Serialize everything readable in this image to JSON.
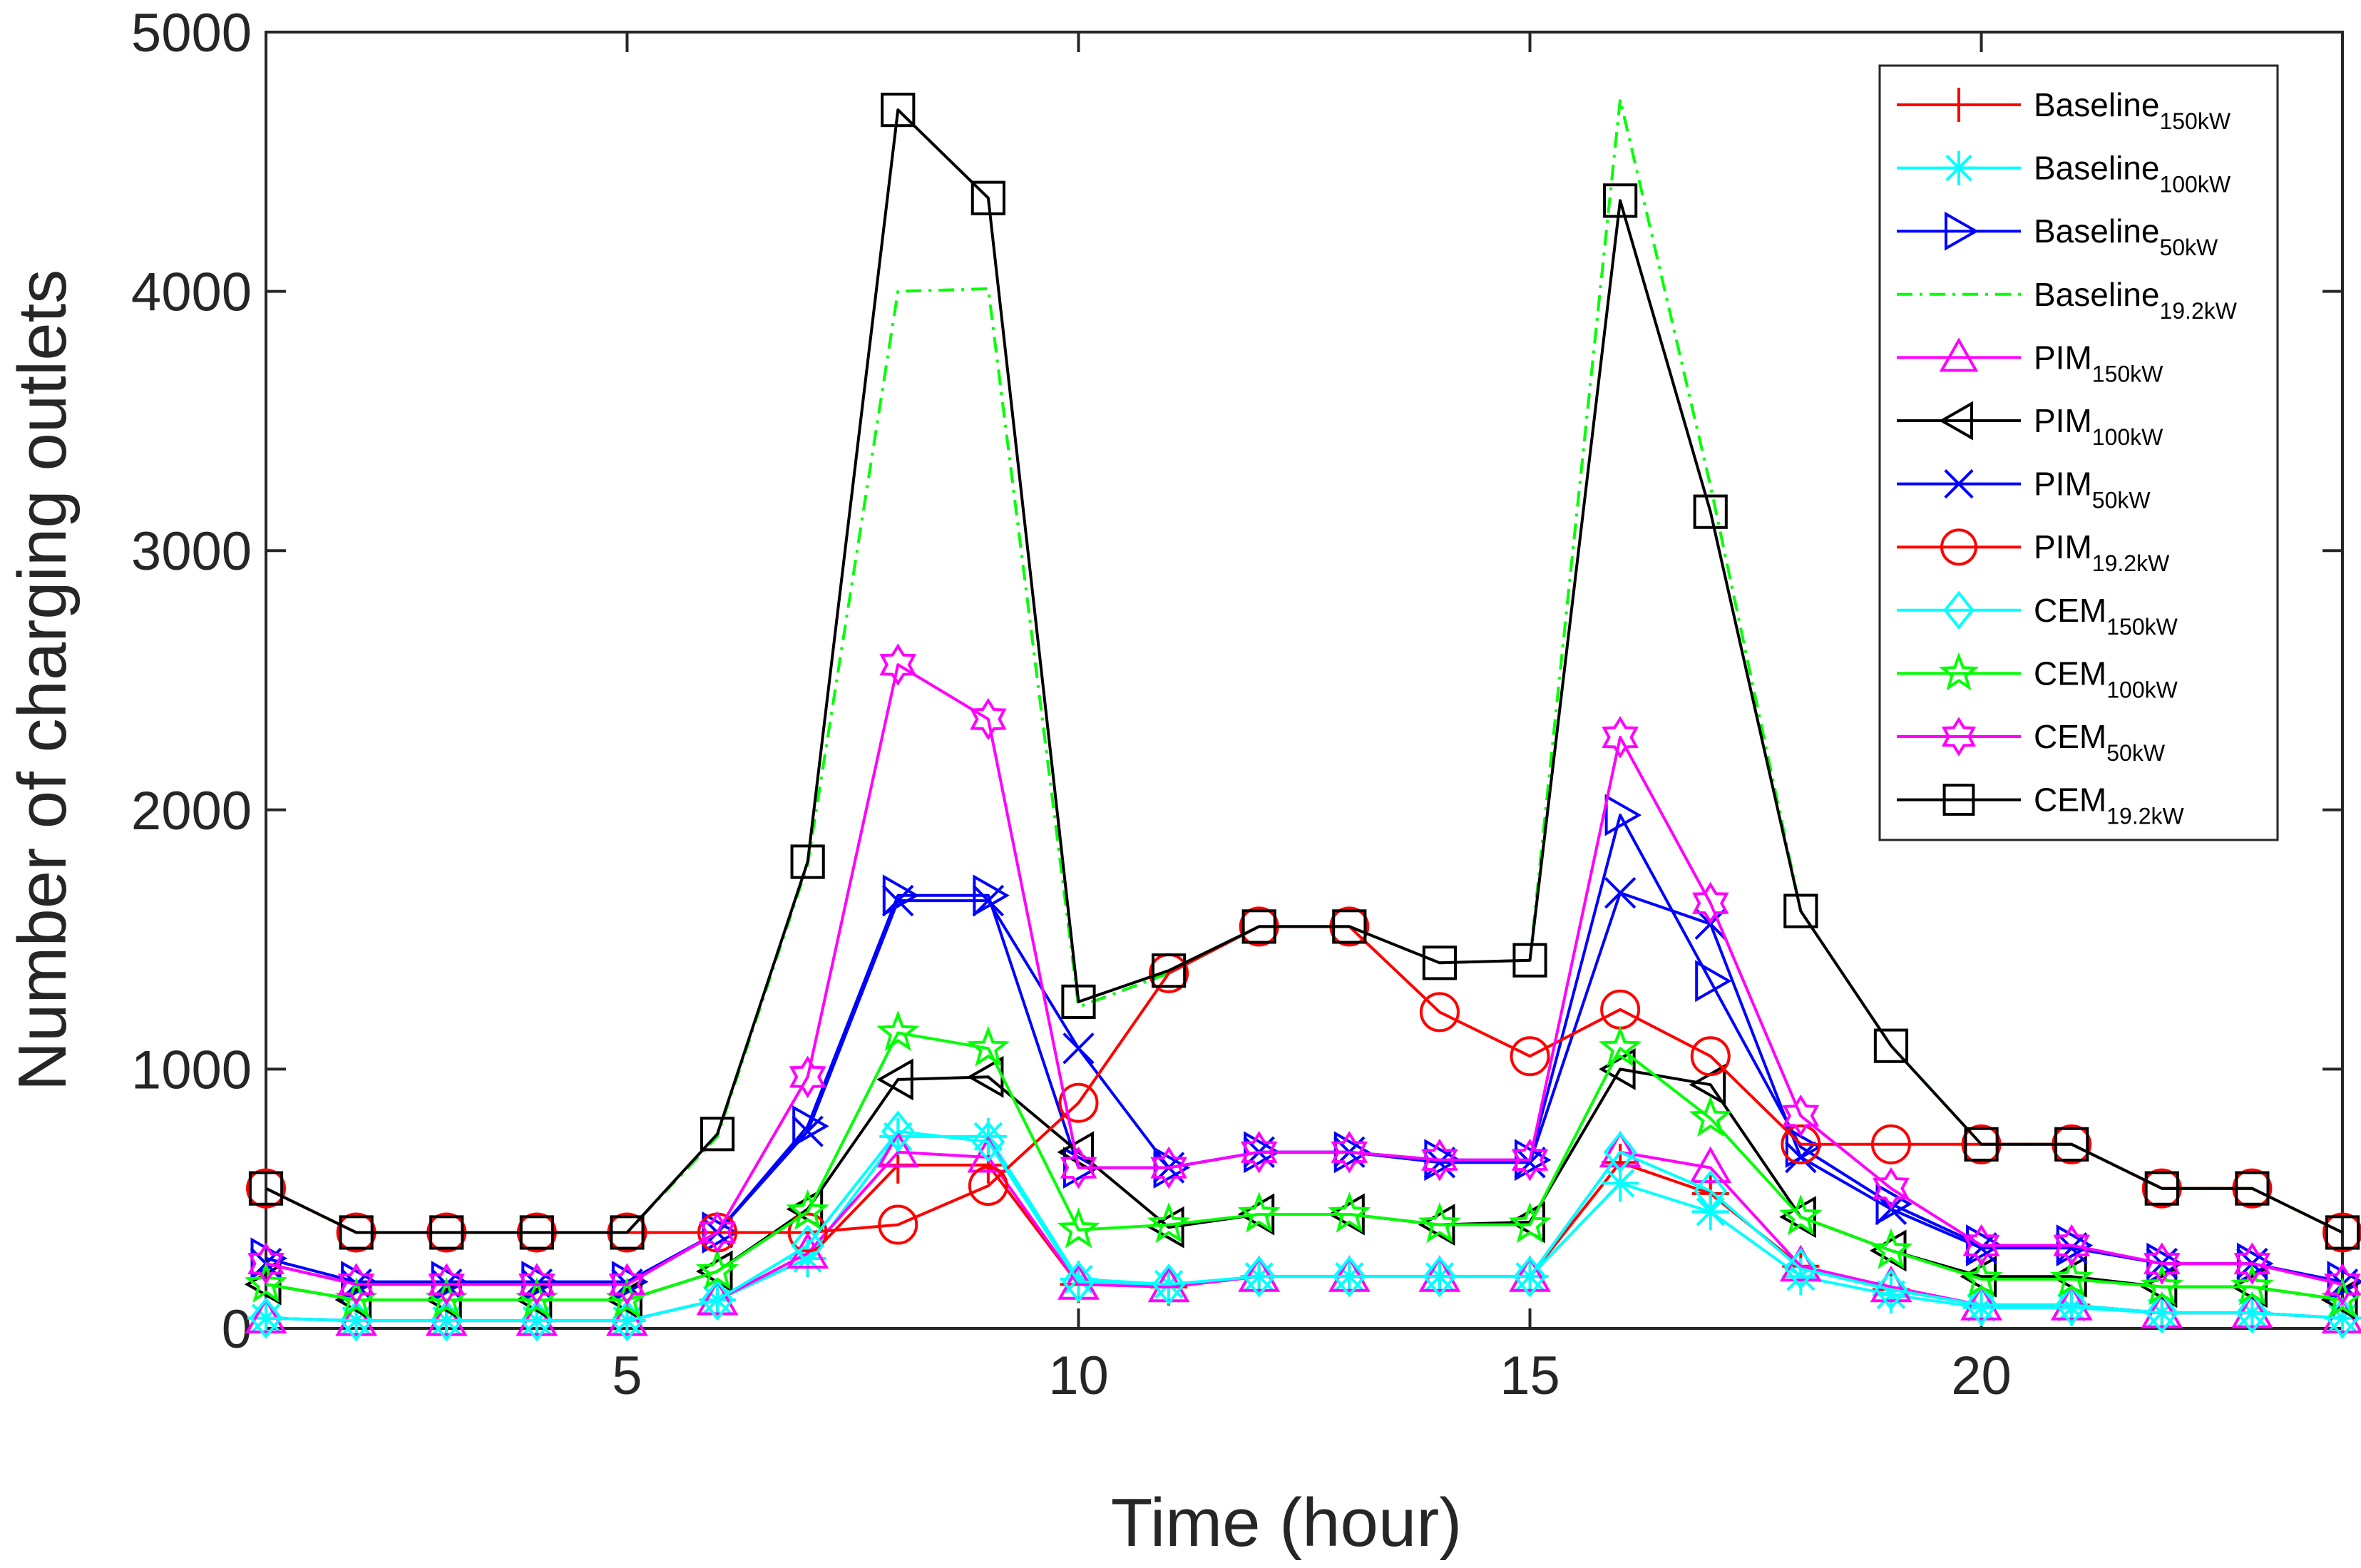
{
  "chart_data": {
    "type": "line",
    "title": "",
    "xlabel": "Time (hour)",
    "ylabel": "Number of charging outlets",
    "xlim": [
      1,
      24
    ],
    "ylim": [
      0,
      5000
    ],
    "xticks": [
      5,
      10,
      15,
      20
    ],
    "yticks": [
      0,
      1000,
      2000,
      3000,
      4000,
      5000
    ],
    "legend_position": "top-right",
    "x": [
      1,
      2,
      3,
      4,
      5,
      6,
      7,
      8,
      9,
      10,
      11,
      12,
      13,
      14,
      15,
      16,
      17,
      18,
      19,
      20,
      21,
      22,
      23,
      24
    ],
    "series": [
      {
        "name": "Baseline",
        "subscript": "150kW",
        "color": "#ff0000",
        "marker": "plus",
        "dash": "solid",
        "values": [
          40,
          30,
          30,
          30,
          30,
          110,
          270,
          630,
          630,
          170,
          160,
          200,
          200,
          200,
          200,
          640,
          520,
          240,
          150,
          90,
          90,
          60,
          60,
          40
        ]
      },
      {
        "name": "Baseline",
        "subscript": "100kW",
        "color": "#00ffff",
        "marker": "asterisk",
        "dash": "solid",
        "values": [
          40,
          30,
          30,
          30,
          30,
          110,
          270,
          740,
          740,
          190,
          170,
          200,
          200,
          200,
          200,
          560,
          450,
          200,
          130,
          80,
          80,
          60,
          60,
          40
        ]
      },
      {
        "name": "Baseline",
        "subscript": "50kW",
        "color": "#0000ff",
        "marker": "triangle-right",
        "dash": "solid",
        "values": [
          270,
          180,
          180,
          180,
          180,
          370,
          780,
          1670,
          1670,
          620,
          620,
          680,
          680,
          650,
          650,
          1980,
          1340,
          700,
          480,
          320,
          320,
          250,
          250,
          180
        ]
      },
      {
        "name": "Baseline",
        "subscript": "19.2kW",
        "color": "#00ff00",
        "marker": "none",
        "dash": "dashdot",
        "values": [
          540,
          370,
          370,
          370,
          370,
          740,
          1790,
          4000,
          4010,
          1240,
          1370,
          1550,
          1550,
          1410,
          1420,
          4740,
          3250,
          1610,
          1090,
          710,
          710,
          540,
          540,
          370
        ]
      },
      {
        "name": "PIM",
        "subscript": "150kW",
        "color": "#ff00ff",
        "marker": "triangle-up",
        "dash": "solid",
        "values": [
          40,
          30,
          30,
          30,
          30,
          110,
          290,
          680,
          660,
          170,
          160,
          200,
          200,
          200,
          200,
          680,
          620,
          240,
          160,
          90,
          90,
          60,
          60,
          40
        ]
      },
      {
        "name": "PIM",
        "subscript": "100kW",
        "color": "#000000",
        "marker": "triangle-left",
        "dash": "solid",
        "values": [
          170,
          110,
          110,
          110,
          110,
          220,
          460,
          960,
          970,
          680,
          390,
          440,
          440,
          400,
          410,
          1000,
          940,
          430,
          300,
          200,
          200,
          160,
          160,
          110
        ]
      },
      {
        "name": "PIM",
        "subscript": "50kW",
        "color": "#0000ff",
        "marker": "cross",
        "dash": "solid",
        "values": [
          250,
          170,
          170,
          170,
          170,
          370,
          760,
          1650,
          1650,
          1080,
          620,
          680,
          680,
          640,
          640,
          1680,
          1560,
          660,
          460,
          310,
          310,
          250,
          250,
          170
        ]
      },
      {
        "name": "PIM",
        "subscript": "19.2kW",
        "color": "#ff0000",
        "marker": "circle",
        "dash": "solid",
        "values": [
          540,
          370,
          370,
          370,
          370,
          370,
          370,
          400,
          550,
          870,
          1370,
          1550,
          1550,
          1220,
          1050,
          1230,
          1050,
          710,
          710,
          710,
          710,
          540,
          540,
          370
        ]
      },
      {
        "name": "CEM",
        "subscript": "150kW",
        "color": "#00ffff",
        "marker": "diamond",
        "dash": "solid",
        "values": [
          40,
          30,
          30,
          30,
          30,
          110,
          320,
          760,
          720,
          180,
          170,
          200,
          200,
          200,
          200,
          680,
          530,
          230,
          150,
          90,
          90,
          60,
          60,
          40
        ]
      },
      {
        "name": "CEM",
        "subscript": "100kW",
        "color": "#00ff00",
        "marker": "star5",
        "dash": "solid",
        "values": [
          170,
          110,
          110,
          110,
          110,
          220,
          450,
          1140,
          1080,
          380,
          400,
          440,
          440,
          400,
          400,
          1080,
          810,
          430,
          300,
          190,
          190,
          160,
          160,
          110
        ]
      },
      {
        "name": "CEM",
        "subscript": "50kW",
        "color": "#ff00ff",
        "marker": "hexagram",
        "dash": "solid",
        "values": [
          250,
          170,
          170,
          170,
          170,
          370,
          970,
          2560,
          2350,
          620,
          620,
          680,
          680,
          650,
          650,
          2280,
          1640,
          820,
          540,
          320,
          320,
          250,
          250,
          170
        ]
      },
      {
        "name": "CEM",
        "subscript": "19.2kW",
        "color": "#000000",
        "marker": "square",
        "dash": "solid",
        "values": [
          540,
          370,
          370,
          370,
          370,
          750,
          1800,
          4700,
          4360,
          1260,
          1380,
          1550,
          1550,
          1410,
          1420,
          4350,
          3150,
          1610,
          1090,
          710,
          710,
          540,
          540,
          370
        ]
      }
    ]
  }
}
